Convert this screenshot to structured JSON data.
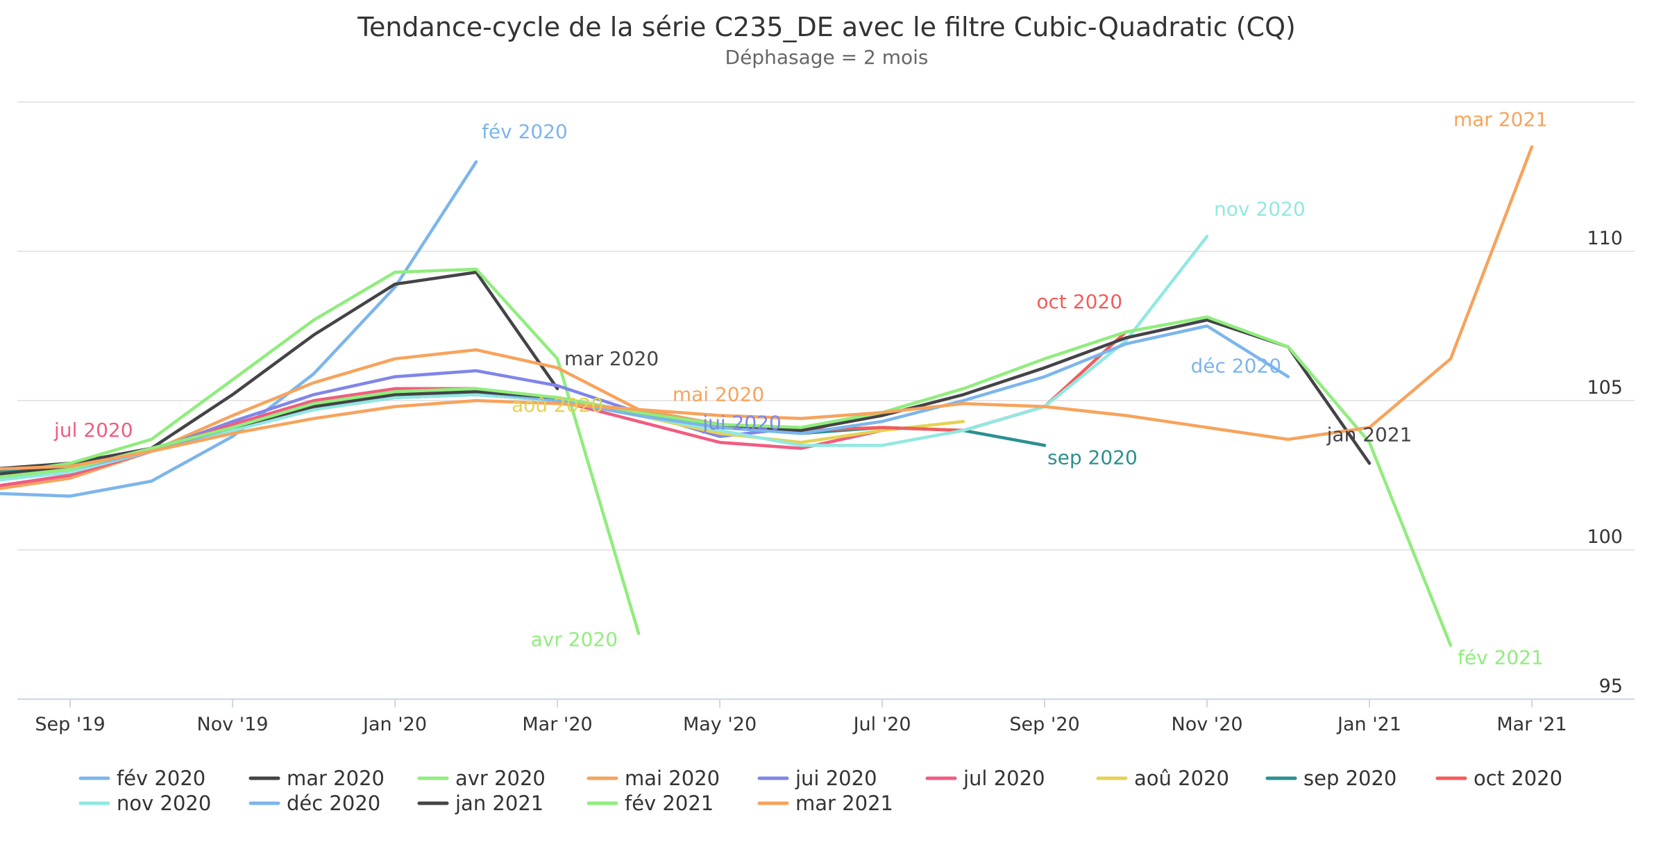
{
  "chart_data": {
    "type": "line",
    "title": "Tendance-cycle de la série C235_DE avec le filtre Cubic-Quadratic (CQ)",
    "subtitle": "Déphasage = 2 mois",
    "x_tick_labels": [
      "Sep '19",
      "Nov '19",
      "Jan '20",
      "Mar '20",
      "May '20",
      "Jul '20",
      "Sep '20",
      "Nov '20",
      "Jan '21",
      "Mar '21"
    ],
    "x_range": [
      "2019-08",
      "2021-03"
    ],
    "y_axis_position": "right",
    "ylim": [
      95,
      115
    ],
    "y_ticks": [
      95,
      100,
      105,
      110
    ],
    "grid": true,
    "legend_position": "bottom",
    "series": [
      {
        "name": "fév 2020",
        "color": "#7cb5ec",
        "x": [
          "2019-08",
          "2019-09",
          "2019-10",
          "2019-11",
          "2019-12",
          "2020-01",
          "2020-02"
        ],
        "y": [
          101.9,
          101.8,
          102.3,
          103.8,
          105.9,
          108.8,
          113.0
        ],
        "end_label": "fév 2020"
      },
      {
        "name": "mar 2020",
        "color": "#434348",
        "x": [
          "2019-08",
          "2019-09",
          "2019-10",
          "2019-11",
          "2019-12",
          "2020-01",
          "2020-02",
          "2020-03"
        ],
        "y": [
          102.7,
          102.9,
          103.4,
          105.2,
          107.2,
          108.9,
          109.3,
          105.4
        ],
        "end_label": "mar 2020"
      },
      {
        "name": "avr 2020",
        "color": "#90ed7d",
        "x": [
          "2019-08",
          "2019-09",
          "2019-10",
          "2019-11",
          "2019-12",
          "2020-01",
          "2020-02",
          "2020-03",
          "2020-04"
        ],
        "y": [
          102.5,
          102.9,
          103.7,
          105.7,
          107.7,
          109.3,
          109.4,
          106.4,
          97.2
        ],
        "end_label": "avr 2020"
      },
      {
        "name": "mai 2020",
        "color": "#f7a35c",
        "x": [
          "2019-08",
          "2019-09",
          "2019-10",
          "2019-11",
          "2019-12",
          "2020-01",
          "2020-02",
          "2020-03",
          "2020-04",
          "2020-05"
        ],
        "y": [
          102.0,
          102.4,
          103.3,
          104.5,
          105.6,
          106.4,
          106.7,
          106.1,
          104.7,
          104.2
        ],
        "end_label": "mai 2020"
      },
      {
        "name": "jui 2020",
        "color": "#8085e9",
        "x": [
          "2019-08",
          "2019-09",
          "2019-10",
          "2019-11",
          "2019-12",
          "2020-01",
          "2020-02",
          "2020-03",
          "2020-04",
          "2020-05",
          "2020-06"
        ],
        "y": [
          102.1,
          102.5,
          103.3,
          104.3,
          105.2,
          105.8,
          106.0,
          105.5,
          104.6,
          103.8,
          104.1
        ],
        "end_label": "jui 2020"
      },
      {
        "name": "jul 2020",
        "color": "#f15c80",
        "x": [
          "2019-08",
          "2019-09",
          "2019-10",
          "2019-11",
          "2019-12",
          "2020-01",
          "2020-02",
          "2020-03",
          "2020-04",
          "2020-05",
          "2020-06",
          "2020-07"
        ],
        "y": [
          102.1,
          102.5,
          103.3,
          104.2,
          105.0,
          105.4,
          105.4,
          105.0,
          104.3,
          103.6,
          103.4,
          104.0
        ],
        "end_label": "jul 2020"
      },
      {
        "name": "aoû 2020",
        "color": "#e4d354",
        "x": [
          "2019-08",
          "2019-09",
          "2019-10",
          "2019-11",
          "2019-12",
          "2020-01",
          "2020-02",
          "2020-03",
          "2020-04",
          "2020-05",
          "2020-06",
          "2020-07",
          "2020-08"
        ],
        "y": [
          102.4,
          102.7,
          103.3,
          104.1,
          104.8,
          105.2,
          105.2,
          105.0,
          104.5,
          103.9,
          103.6,
          104.0,
          104.3
        ],
        "end_label": "aoû 2020"
      },
      {
        "name": "sep 2020",
        "color": "#2b908f",
        "x": [
          "2019-08",
          "2019-09",
          "2019-10",
          "2019-11",
          "2019-12",
          "2020-01",
          "2020-02",
          "2020-03",
          "2020-04",
          "2020-05",
          "2020-06",
          "2020-07",
          "2020-08",
          "2020-09"
        ],
        "y": [
          102.6,
          102.8,
          103.3,
          104.0,
          104.7,
          105.1,
          105.2,
          105.0,
          104.6,
          104.2,
          103.9,
          104.1,
          104.0,
          103.5
        ],
        "end_label": "sep 2020"
      },
      {
        "name": "oct 2020",
        "color": "#f45b5b",
        "x": [
          "2019-08",
          "2019-09",
          "2019-10",
          "2019-11",
          "2019-12",
          "2020-01",
          "2020-02",
          "2020-03",
          "2020-04",
          "2020-05",
          "2020-06",
          "2020-07",
          "2020-08",
          "2020-09",
          "2020-10"
        ],
        "y": [
          102.3,
          102.7,
          103.3,
          104.1,
          104.8,
          105.2,
          105.2,
          105.0,
          104.6,
          104.2,
          104.0,
          104.1,
          104.0,
          104.8,
          107.3
        ],
        "end_label": "oct 2020"
      },
      {
        "name": "nov 2020",
        "color": "#91e8e1",
        "x": [
          "2019-08",
          "2019-09",
          "2019-10",
          "2019-11",
          "2019-12",
          "2020-01",
          "2020-02",
          "2020-03",
          "2020-04",
          "2020-05",
          "2020-06",
          "2020-07",
          "2020-08",
          "2020-09",
          "2020-10",
          "2020-11"
        ],
        "y": [
          102.3,
          102.6,
          103.3,
          104.0,
          104.7,
          105.1,
          105.2,
          105.0,
          104.5,
          104.0,
          103.5,
          103.5,
          104.0,
          104.8,
          107.0,
          110.5
        ],
        "end_label": "nov 2020"
      },
      {
        "name": "déc 2020",
        "color": "#7cb5ec",
        "x": [
          "2019-08",
          "2019-09",
          "2019-10",
          "2019-11",
          "2019-12",
          "2020-01",
          "2020-02",
          "2020-03",
          "2020-04",
          "2020-05",
          "2020-06",
          "2020-07",
          "2020-08",
          "2020-09",
          "2020-10",
          "2020-11",
          "2020-12"
        ],
        "y": [
          102.4,
          102.7,
          103.3,
          104.1,
          104.8,
          105.2,
          105.3,
          105.0,
          104.5,
          104.1,
          103.9,
          104.3,
          105.0,
          105.8,
          106.9,
          107.5,
          105.8
        ],
        "end_label": "déc 2020"
      },
      {
        "name": "jan 2021",
        "color": "#434348",
        "x": [
          "2019-08",
          "2019-09",
          "2019-10",
          "2019-11",
          "2019-12",
          "2020-01",
          "2020-02",
          "2020-03",
          "2020-04",
          "2020-05",
          "2020-06",
          "2020-07",
          "2020-08",
          "2020-09",
          "2020-10",
          "2020-11",
          "2020-12",
          "2021-01"
        ],
        "y": [
          102.5,
          102.8,
          103.4,
          104.1,
          104.8,
          105.2,
          105.3,
          105.1,
          104.6,
          104.2,
          104.0,
          104.5,
          105.2,
          106.1,
          107.1,
          107.7,
          106.8,
          102.9
        ],
        "end_label": "jan 2021"
      },
      {
        "name": "fév 2021",
        "color": "#90ed7d",
        "x": [
          "2019-08",
          "2019-09",
          "2019-10",
          "2019-11",
          "2019-12",
          "2020-01",
          "2020-02",
          "2020-03",
          "2020-04",
          "2020-05",
          "2020-06",
          "2020-07",
          "2020-08",
          "2020-09",
          "2020-10",
          "2020-11",
          "2020-12",
          "2021-01",
          "2021-02"
        ],
        "y": [
          102.4,
          102.7,
          103.4,
          104.1,
          104.9,
          105.3,
          105.4,
          105.1,
          104.6,
          104.2,
          104.1,
          104.6,
          105.4,
          106.4,
          107.3,
          107.8,
          106.8,
          103.6,
          96.8
        ],
        "end_label": "fév 2021"
      },
      {
        "name": "mar 2021",
        "color": "#f7a35c",
        "x": [
          "2019-08",
          "2019-09",
          "2019-10",
          "2019-11",
          "2019-12",
          "2020-01",
          "2020-02",
          "2020-03",
          "2020-04",
          "2020-05",
          "2020-06",
          "2020-07",
          "2020-08",
          "2020-09",
          "2020-10",
          "2020-11",
          "2020-12",
          "2021-01",
          "2021-02",
          "2021-03"
        ],
        "y": [
          102.7,
          102.8,
          103.3,
          103.9,
          104.4,
          104.8,
          105.0,
          104.9,
          104.7,
          104.5,
          104.4,
          104.6,
          104.9,
          104.8,
          104.5,
          104.1,
          103.7,
          104.1,
          106.4,
          113.5
        ],
        "end_label": "mar 2021"
      }
    ]
  }
}
